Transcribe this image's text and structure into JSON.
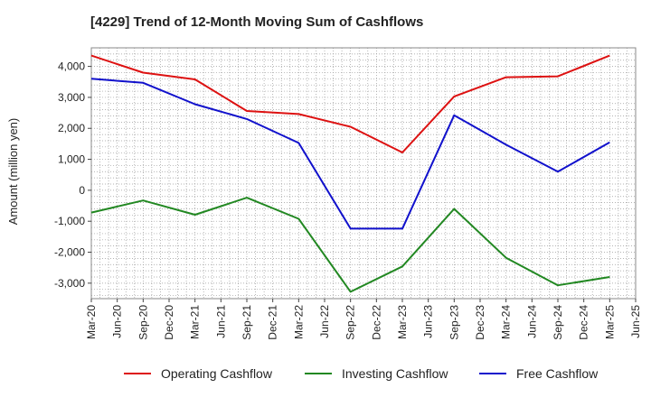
{
  "chart_data": {
    "type": "line",
    "title": "[4229]  Trend of 12-Month Moving Sum of Cashflows",
    "xlabel": "",
    "ylabel": "Amount (million yen)",
    "ylim": [
      -3500,
      4600
    ],
    "yticks": [
      4000,
      3000,
      2000,
      1000,
      0,
      -1000,
      -2000,
      -3000
    ],
    "ytick_labels": [
      "4,000",
      "3,000",
      "2,000",
      "1,000",
      "0",
      "-1,000",
      "-2,000",
      "-3,000"
    ],
    "x": [
      "Mar-20",
      "Jun-20",
      "Sep-20",
      "Dec-20",
      "Mar-21",
      "Jun-21",
      "Sep-21",
      "Dec-21",
      "Mar-22",
      "Jun-22",
      "Sep-22",
      "Dec-22",
      "Mar-23",
      "Jun-23",
      "Sep-23",
      "Dec-23",
      "Mar-24",
      "Jun-24",
      "Sep-24",
      "Dec-24",
      "Mar-25",
      "Jun-25"
    ],
    "grid": true,
    "legend_position": "bottom",
    "series": [
      {
        "name": "Operating Cashflow",
        "color": "#dd1111",
        "points": [
          [
            "Mar-20",
            4350
          ],
          [
            "Sep-20",
            3800
          ],
          [
            "Mar-21",
            3580
          ],
          [
            "Sep-21",
            2560
          ],
          [
            "Mar-22",
            2460
          ],
          [
            "Sep-22",
            2050
          ],
          [
            "Mar-23",
            1220
          ],
          [
            "Sep-23",
            3030
          ],
          [
            "Mar-24",
            3650
          ],
          [
            "Sep-24",
            3680
          ],
          [
            "Mar-25",
            4350
          ]
        ]
      },
      {
        "name": "Investing Cashflow",
        "color": "#228822",
        "points": [
          [
            "Mar-20",
            -720
          ],
          [
            "Sep-20",
            -330
          ],
          [
            "Mar-21",
            -790
          ],
          [
            "Sep-21",
            -240
          ],
          [
            "Mar-22",
            -920
          ],
          [
            "Sep-22",
            -3280
          ],
          [
            "Mar-23",
            -2460
          ],
          [
            "Sep-23",
            -600
          ],
          [
            "Mar-24",
            -2180
          ],
          [
            "Sep-24",
            -3070
          ],
          [
            "Mar-25",
            -2800
          ]
        ]
      },
      {
        "name": "Free Cashflow",
        "color": "#1111cc",
        "points": [
          [
            "Mar-20",
            3600
          ],
          [
            "Sep-20",
            3470
          ],
          [
            "Mar-21",
            2780
          ],
          [
            "Sep-21",
            2300
          ],
          [
            "Mar-22",
            1530
          ],
          [
            "Sep-22",
            -1240
          ],
          [
            "Mar-23",
            -1240
          ],
          [
            "Sep-23",
            2420
          ],
          [
            "Mar-24",
            1470
          ],
          [
            "Sep-24",
            600
          ],
          [
            "Mar-25",
            1550
          ]
        ]
      }
    ]
  }
}
